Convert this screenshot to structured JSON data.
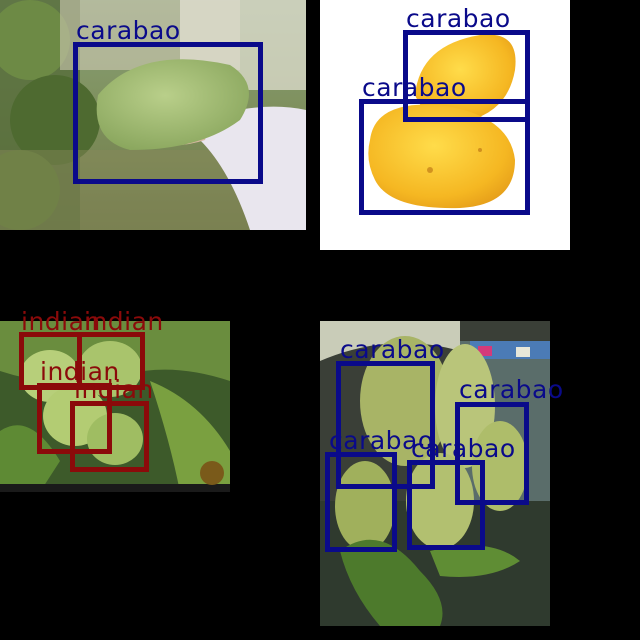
{
  "colors": {
    "carabao": "#0a0a8a",
    "indian": "#8b0a0a",
    "background": "#000000"
  },
  "panels": [
    {
      "id": "top-left",
      "detections": [
        {
          "label": "carabao"
        }
      ]
    },
    {
      "id": "top-right",
      "detections": [
        {
          "label": "carabao"
        },
        {
          "label": "carabao"
        }
      ]
    },
    {
      "id": "bottom-left",
      "detections": [
        {
          "label": "indian"
        },
        {
          "label": "indian"
        },
        {
          "label": "indian"
        },
        {
          "label": "indian"
        }
      ]
    },
    {
      "id": "bottom-right",
      "detections": [
        {
          "label": "carabao"
        },
        {
          "label": "carabao"
        },
        {
          "label": "carabao"
        },
        {
          "label": "carabao"
        }
      ]
    }
  ]
}
